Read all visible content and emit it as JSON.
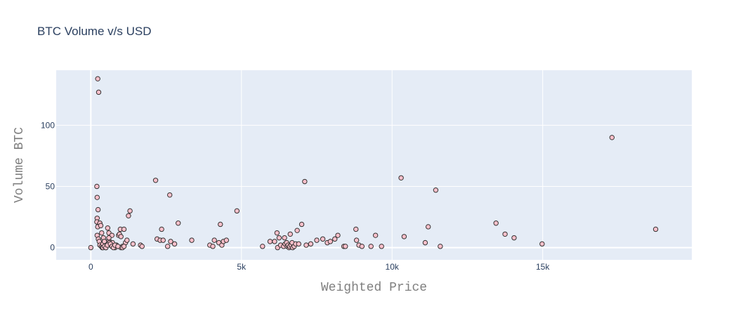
{
  "chart_data": {
    "type": "scatter",
    "title": "BTC Volume v/s USD",
    "xlabel": "Weighted Price",
    "ylabel": "Volume BTC",
    "xlim": [
      -1150,
      19950
    ],
    "ylim": [
      -10,
      145
    ],
    "xticks": [
      {
        "value": 0,
        "label": "0"
      },
      {
        "value": 5000,
        "label": "5k"
      },
      {
        "value": 10000,
        "label": "10k"
      },
      {
        "value": 15000,
        "label": "15k"
      }
    ],
    "yticks": [
      {
        "value": 0,
        "label": "0"
      },
      {
        "value": 50,
        "label": "50"
      },
      {
        "value": 100,
        "label": "100"
      }
    ],
    "grid": true,
    "marker_color": "#ffc0cb",
    "marker_line_color": "#333333",
    "plot_bgcolor": "#e5ecf6",
    "series": [
      {
        "x": [
          0,
          230,
          260,
          200,
          210,
          240,
          210,
          200,
          260,
          230,
          210,
          300,
          330,
          360,
          250,
          280,
          300,
          350,
          380,
          400,
          420,
          450,
          480,
          500,
          520,
          560,
          600,
          600,
          620,
          650,
          700,
          720,
          750,
          800,
          850,
          920,
          980,
          1000,
          1050,
          1100,
          1150,
          1200,
          1250,
          1300,
          400,
          450,
          500,
          550,
          600,
          650,
          700,
          750,
          800,
          900,
          950,
          1000,
          1050,
          1100,
          1400,
          1650,
          1700,
          2150,
          2200,
          2300,
          2350,
          2400,
          2550,
          2620,
          2650,
          2780,
          2900,
          3350,
          3950,
          4050,
          4100,
          4250,
          4300,
          4350,
          4400,
          4500,
          4850,
          5700,
          5950,
          6100,
          6180,
          6200,
          6250,
          6300,
          6400,
          6430,
          6450,
          6500,
          6520,
          6550,
          6580,
          6600,
          6620,
          6650,
          6680,
          6700,
          6750,
          6800,
          6850,
          6900,
          7000,
          7100,
          7150,
          7300,
          7500,
          7700,
          7850,
          7950,
          8100,
          8200,
          8400,
          8450,
          8800,
          8820,
          8900,
          9000,
          9300,
          9450,
          9650,
          10300,
          10400,
          11100,
          11200,
          11450,
          11600,
          13450,
          13750,
          14050,
          14980,
          17300,
          18750
        ],
        "y": [
          0,
          138,
          127,
          50,
          41,
          31,
          24,
          21,
          18,
          17,
          10,
          20,
          18,
          12,
          7,
          5,
          2,
          1,
          0,
          3,
          8,
          5,
          1,
          0,
          2,
          16,
          12,
          6,
          4,
          2,
          10,
          4,
          1,
          0,
          2,
          10,
          15,
          0,
          1,
          15,
          4,
          6,
          26,
          30,
          0,
          1,
          0,
          2,
          8,
          3,
          1,
          0,
          2,
          1,
          11,
          9,
          0,
          1,
          3,
          2,
          1,
          55,
          7,
          6,
          15,
          6,
          1,
          43,
          5,
          3,
          20,
          6,
          2,
          1,
          6,
          4,
          19,
          2,
          5,
          6,
          30,
          1,
          5,
          5,
          12,
          0,
          8,
          2,
          1,
          8,
          3,
          4,
          1,
          2,
          0,
          1,
          11,
          2,
          4,
          0,
          1,
          3,
          14,
          3,
          19,
          54,
          2,
          3,
          6,
          7,
          4,
          5,
          7,
          10,
          1,
          1,
          15,
          6,
          2,
          1,
          1,
          10,
          1,
          57,
          9,
          4,
          17,
          47,
          1,
          20,
          11,
          8,
          3,
          90,
          15
        ]
      }
    ]
  }
}
